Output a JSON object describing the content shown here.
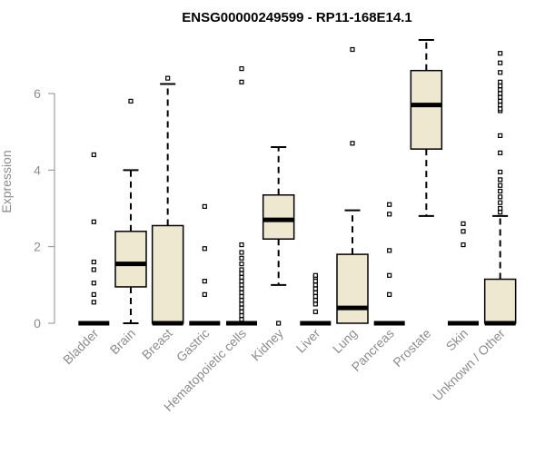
{
  "chart_data": {
    "type": "boxplot",
    "title": "ENSG00000249599 - RP11-168E14.1",
    "xlabel": "",
    "ylabel": "Expression",
    "ylim": [
      0,
      7.5
    ],
    "yticks": [
      0,
      2,
      4,
      6
    ],
    "grid": false,
    "colors": {
      "box_fill": "#efe8d1",
      "stroke": "#000000",
      "axis": "#8c8c8c"
    },
    "categories": [
      "Bladder",
      "Brain",
      "Breast",
      "Gastric",
      "Hematopoietic cells",
      "Kidney",
      "Liver",
      "Lung",
      "Pancreas",
      "Prostate",
      "Skin",
      "Unknown / Other"
    ],
    "boxes": [
      {
        "category": "Bladder",
        "whisker_low": 0,
        "q1": 0,
        "median": 0,
        "q3": 0,
        "whisker_high": 0,
        "outliers": [
          0.55,
          0.75,
          1.05,
          1.4,
          1.6,
          2.65,
          4.4
        ]
      },
      {
        "category": "Brain",
        "whisker_low": 0,
        "q1": 0.95,
        "median": 1.55,
        "q3": 2.4,
        "whisker_high": 4.0,
        "outliers": [
          5.8
        ]
      },
      {
        "category": "Breast",
        "whisker_low": 0,
        "q1": 0,
        "median": 0,
        "q3": 2.55,
        "whisker_high": 6.25,
        "outliers": [
          6.4
        ]
      },
      {
        "category": "Gastric",
        "whisker_low": 0,
        "q1": 0,
        "median": 0,
        "q3": 0,
        "whisker_high": 0,
        "outliers": [
          0.75,
          1.1,
          1.95,
          3.05
        ]
      },
      {
        "category": "Hematopoietic cells",
        "whisker_low": 0,
        "q1": 0,
        "median": 0,
        "q3": 0,
        "whisker_high": 0,
        "outliers": [
          0.1,
          0.2,
          0.3,
          0.4,
          0.5,
          0.6,
          0.7,
          0.8,
          0.9,
          1.0,
          1.1,
          1.2,
          1.3,
          1.4,
          1.55,
          1.7,
          1.85,
          2.05,
          6.3,
          6.65
        ]
      },
      {
        "category": "Kidney",
        "whisker_low": 1.0,
        "q1": 2.2,
        "median": 2.7,
        "q3": 3.35,
        "whisker_high": 4.6,
        "outliers": [
          0
        ]
      },
      {
        "category": "Liver",
        "whisker_low": 0,
        "q1": 0,
        "median": 0,
        "q3": 0,
        "whisker_high": 0,
        "outliers": [
          0.3,
          0.5,
          0.6,
          0.7,
          0.8,
          0.9,
          1.0,
          1.1,
          1.2,
          1.25
        ]
      },
      {
        "category": "Lung",
        "whisker_low": 0,
        "q1": 0,
        "median": 0.4,
        "q3": 1.8,
        "whisker_high": 2.95,
        "outliers": [
          4.7,
          7.15
        ]
      },
      {
        "category": "Pancreas",
        "whisker_low": 0,
        "q1": 0,
        "median": 0,
        "q3": 0,
        "whisker_high": 0,
        "outliers": [
          0.75,
          1.25,
          1.9,
          2.85,
          3.1
        ]
      },
      {
        "category": "Prostate",
        "whisker_low": 2.8,
        "q1": 4.55,
        "median": 5.7,
        "q3": 6.6,
        "whisker_high": 7.4,
        "outliers": []
      },
      {
        "category": "Skin",
        "whisker_low": 0,
        "q1": 0,
        "median": 0,
        "q3": 0,
        "whisker_high": 0,
        "outliers": [
          2.05,
          2.4,
          2.6
        ]
      },
      {
        "category": "Unknown / Other",
        "whisker_low": 0,
        "q1": 0,
        "median": 0,
        "q3": 1.15,
        "whisker_high": 2.8,
        "outliers": [
          2.9,
          3.0,
          3.15,
          3.3,
          3.45,
          3.6,
          3.75,
          3.95,
          4.45,
          4.9,
          5.55,
          5.6,
          5.7,
          5.8,
          5.9,
          6.0,
          6.1,
          6.2,
          6.3,
          6.55,
          6.8,
          7.05
        ]
      }
    ]
  }
}
